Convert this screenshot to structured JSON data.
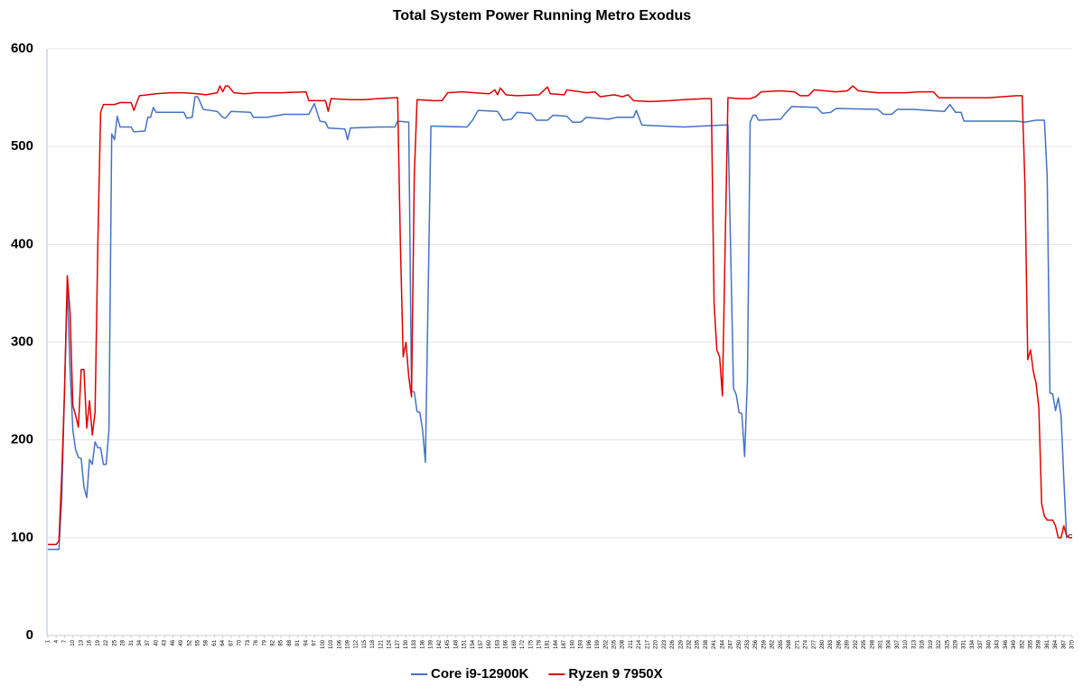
{
  "chart_data": {
    "type": "line",
    "title": "Total System Power Running Metro Exodus",
    "xlim": [
      1,
      370
    ],
    "ylim": [
      0,
      600
    ],
    "yticks": [
      0,
      100,
      200,
      300,
      400,
      500,
      600
    ],
    "grid": true,
    "legend": "bottom",
    "xticks": [
      1,
      4,
      7,
      10,
      13,
      16,
      19,
      22,
      25,
      28,
      31,
      34,
      37,
      40,
      43,
      46,
      49,
      52,
      55,
      58,
      61,
      64,
      67,
      70,
      73,
      76,
      79,
      82,
      85,
      88,
      91,
      94,
      97,
      100,
      103,
      106,
      109,
      112,
      115,
      118,
      121,
      124,
      127,
      130,
      133,
      136,
      139,
      142,
      145,
      148,
      151,
      154,
      157,
      160,
      163,
      166,
      169,
      172,
      175,
      178,
      181,
      184,
      187,
      190,
      193,
      196,
      199,
      202,
      205,
      208,
      211,
      214,
      217,
      220,
      223,
      226,
      229,
      232,
      235,
      238,
      241,
      244,
      247,
      250,
      253,
      256,
      259,
      262,
      265,
      268,
      271,
      274,
      277,
      280,
      283,
      286,
      289,
      292,
      295,
      298,
      301,
      304,
      307,
      310,
      313,
      316,
      319,
      322,
      325,
      328,
      331,
      334,
      337,
      340,
      343,
      346,
      349,
      352,
      355,
      358,
      361,
      364,
      367,
      370
    ],
    "series": [
      {
        "name": "Core i9-12900K",
        "color": "#4472c4",
        "x": [
          1,
          5,
          6,
          7,
          8,
          9,
          10,
          11,
          12,
          13,
          14,
          15,
          16,
          17,
          18,
          19,
          20,
          21,
          22,
          23,
          24,
          25,
          26,
          27,
          31,
          32,
          36,
          37,
          38,
          39,
          40,
          50,
          51,
          53,
          54,
          55,
          57,
          62,
          64,
          65,
          67,
          74,
          75,
          80,
          86,
          95,
          97,
          99,
          101,
          102,
          108,
          109,
          110,
          120,
          126,
          127,
          131,
          132,
          133,
          134,
          135,
          136,
          137,
          138,
          139,
          152,
          154,
          156,
          163,
          165,
          168,
          170,
          175,
          177,
          181,
          183,
          188,
          190,
          193,
          195,
          203,
          206,
          212,
          213,
          215,
          230,
          244,
          246,
          247,
          248,
          249,
          250,
          251,
          252,
          253,
          254,
          255,
          256,
          257,
          265,
          267,
          269,
          278,
          280,
          283,
          285,
          300,
          302,
          305,
          307,
          313,
          324,
          326,
          328,
          330,
          331,
          350,
          353,
          357,
          360,
          361,
          362,
          363,
          364,
          365,
          366,
          367,
          368,
          369,
          370
        ],
        "values": [
          88,
          88,
          140,
          250,
          360,
          270,
          210,
          190,
          182,
          181,
          152,
          141,
          180,
          175,
          198,
          192,
          192,
          175,
          175,
          210,
          513,
          507,
          531,
          520,
          520,
          515,
          516,
          530,
          530,
          540,
          535,
          535,
          529,
          530,
          551,
          551,
          538,
          536,
          530,
          529,
          536,
          535,
          530,
          530,
          533,
          533,
          544,
          526,
          525,
          519,
          518,
          507,
          519,
          520,
          520,
          526,
          525,
          250,
          249,
          229,
          228,
          210,
          177,
          350,
          521,
          520,
          527,
          537,
          536,
          527,
          528,
          535,
          534,
          527,
          527,
          532,
          531,
          525,
          525,
          530,
          528,
          530,
          530,
          537,
          522,
          520,
          522,
          522,
          390,
          253,
          246,
          228,
          227,
          183,
          260,
          525,
          532,
          532,
          527,
          528,
          535,
          541,
          540,
          534,
          535,
          539,
          538,
          533,
          533,
          538,
          538,
          536,
          543,
          535,
          535,
          526,
          526,
          525,
          527,
          527,
          470,
          248,
          247,
          230,
          243,
          225,
          160,
          100,
          103,
          103
        ]
      },
      {
        "name": "Ryzen 9 7950X",
        "color": "#e00000",
        "x": [
          1,
          4,
          5,
          6,
          7,
          8,
          9,
          10,
          11,
          12,
          13,
          14,
          15,
          16,
          17,
          18,
          19,
          20,
          21,
          25,
          27,
          31,
          32,
          33,
          34,
          40,
          45,
          50,
          55,
          58,
          62,
          63,
          64,
          65,
          66,
          68,
          72,
          76,
          85,
          94,
          95,
          101,
          102,
          103,
          110,
          115,
          120,
          126,
          127,
          128,
          129,
          130,
          131,
          132,
          133,
          134,
          140,
          143,
          145,
          150,
          160,
          162,
          163,
          164,
          166,
          170,
          178,
          181,
          182,
          187,
          188,
          195,
          198,
          200,
          205,
          208,
          210,
          212,
          218,
          225,
          230,
          238,
          240,
          241,
          242,
          243,
          244,
          245,
          246,
          250,
          254,
          256,
          258,
          265,
          270,
          272,
          275,
          277,
          285,
          289,
          291,
          293,
          300,
          310,
          315,
          320,
          322,
          330,
          340,
          350,
          352,
          353,
          354,
          355,
          356,
          357,
          358,
          359,
          360,
          361,
          363,
          364,
          365,
          366,
          367,
          368,
          369,
          370
        ],
        "values": [
          93,
          93,
          97,
          165,
          250,
          368,
          330,
          235,
          225,
          213,
          272,
          272,
          212,
          240,
          205,
          228,
          400,
          535,
          543,
          543,
          545,
          545,
          537,
          545,
          552,
          554,
          555,
          555,
          554,
          553,
          555,
          562,
          556,
          562,
          562,
          555,
          554,
          555,
          555,
          556,
          547,
          547,
          536,
          549,
          548,
          548,
          549,
          550,
          550,
          400,
          285,
          300,
          265,
          244,
          470,
          548,
          547,
          547,
          555,
          556,
          554,
          558,
          553,
          560,
          553,
          552,
          553,
          561,
          554,
          553,
          558,
          555,
          556,
          551,
          553,
          551,
          553,
          547,
          546,
          547,
          548,
          549,
          549,
          340,
          292,
          285,
          245,
          400,
          550,
          549,
          549,
          551,
          556,
          557,
          556,
          552,
          552,
          558,
          556,
          557,
          562,
          557,
          555,
          555,
          556,
          556,
          550,
          550,
          550,
          552,
          552,
          460,
          282,
          292,
          270,
          258,
          233,
          135,
          122,
          118,
          118,
          112,
          100,
          100,
          112,
          102,
          100,
          100
        ]
      }
    ]
  }
}
